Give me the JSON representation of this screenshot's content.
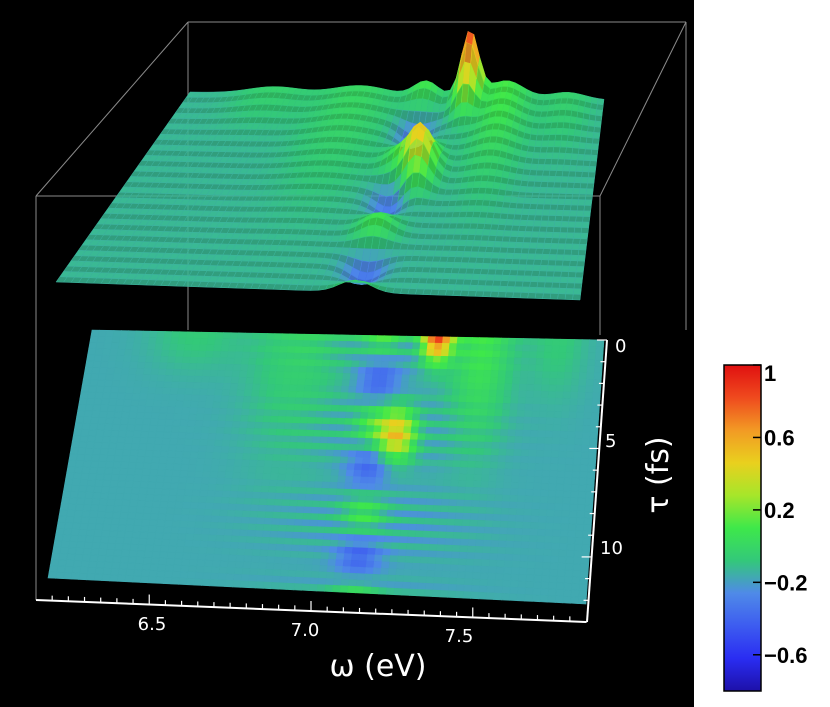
{
  "chart_data": {
    "type": "surface3d",
    "x": {
      "label": "ω (eV)",
      "ticks": [
        6.5,
        7.0,
        7.5
      ],
      "tick_labels": [
        "6.5",
        "7.0",
        "7.5"
      ],
      "range": [
        6.15,
        7.85
      ]
    },
    "y": {
      "label": "τ (fs)",
      "ticks": [
        0,
        5,
        10
      ],
      "tick_labels": [
        "0",
        "5",
        "10"
      ],
      "range": [
        0,
        13
      ]
    },
    "z": {
      "range": [
        -0.8,
        1
      ]
    },
    "colorbar": {
      "ticks": [
        1,
        0.6,
        0.2,
        -0.2,
        -0.6
      ],
      "tick_labels": [
        "1",
        "0.6",
        "0.2",
        "−0.2",
        "−0.6"
      ],
      "range": [
        -0.8,
        1
      ],
      "colors": [
        "#1d10a8",
        "#2a2df2",
        "#3d5cf0",
        "#4f8ae8",
        "#33c87a",
        "#3ee84a",
        "#a6e62a",
        "#e9d01e",
        "#f29a24",
        "#ef4a1e",
        "#e01010"
      ]
    },
    "surface_peaks": [
      {
        "omega": 7.3,
        "tau": 0,
        "value": 1.0
      },
      {
        "omega": 7.2,
        "tau": 5,
        "value": 0.7
      }
    ],
    "layers": [
      "3d-surface",
      "projected-density-map"
    ]
  }
}
